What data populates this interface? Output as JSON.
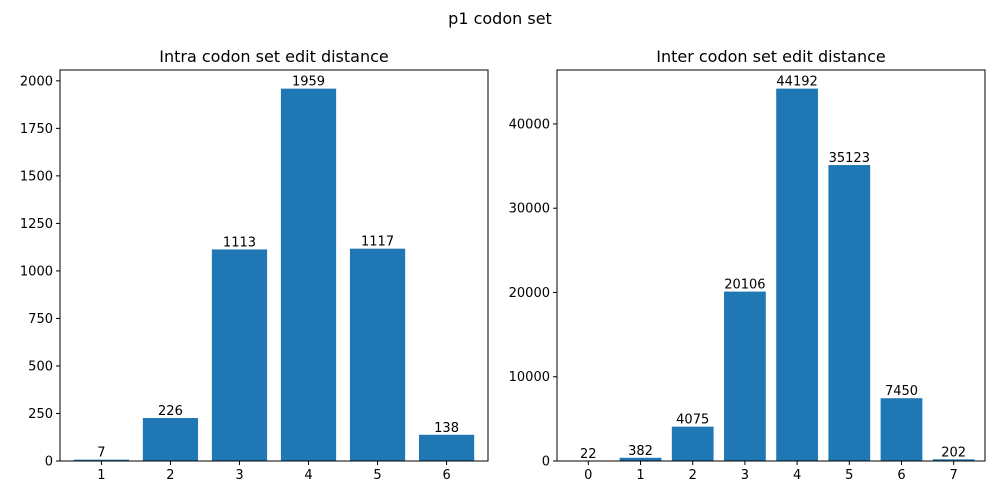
{
  "figure": {
    "suptitle": "p1 codon set"
  },
  "chart_data": [
    {
      "type": "bar",
      "title": "Intra codon set edit distance",
      "xlabel": "",
      "ylabel": "",
      "categories": [
        1,
        2,
        3,
        4,
        5,
        6
      ],
      "values": [
        7,
        226,
        1113,
        1959,
        1117,
        138
      ],
      "data_labels": [
        "7",
        "226",
        "1113",
        "1959",
        "1117",
        "138"
      ],
      "xticks": [
        "1",
        "2",
        "3",
        "4",
        "5",
        "6"
      ],
      "yticks": [
        0,
        250,
        500,
        750,
        1000,
        1250,
        1500,
        1750,
        2000
      ],
      "ylim": [
        0,
        2057
      ],
      "xlim": [
        0.4,
        6.6
      ],
      "bar_color": "#1f77b4",
      "grid": false
    },
    {
      "type": "bar",
      "title": "Inter codon set edit distance",
      "xlabel": "",
      "ylabel": "",
      "categories": [
        0,
        1,
        2,
        3,
        4,
        5,
        6,
        7
      ],
      "values": [
        22,
        382,
        4075,
        20106,
        44192,
        35123,
        7450,
        202
      ],
      "data_labels": [
        "22",
        "382",
        "4075",
        "20106",
        "44192",
        "35123",
        "7450",
        "202"
      ],
      "xticks": [
        "0",
        "1",
        "2",
        "3",
        "4",
        "5",
        "6",
        "7"
      ],
      "yticks": [
        0,
        10000,
        20000,
        30000,
        40000
      ],
      "ylim": [
        0,
        46402
      ],
      "xlim": [
        -0.6,
        7.6
      ],
      "bar_color": "#1f77b4",
      "grid": false
    }
  ]
}
